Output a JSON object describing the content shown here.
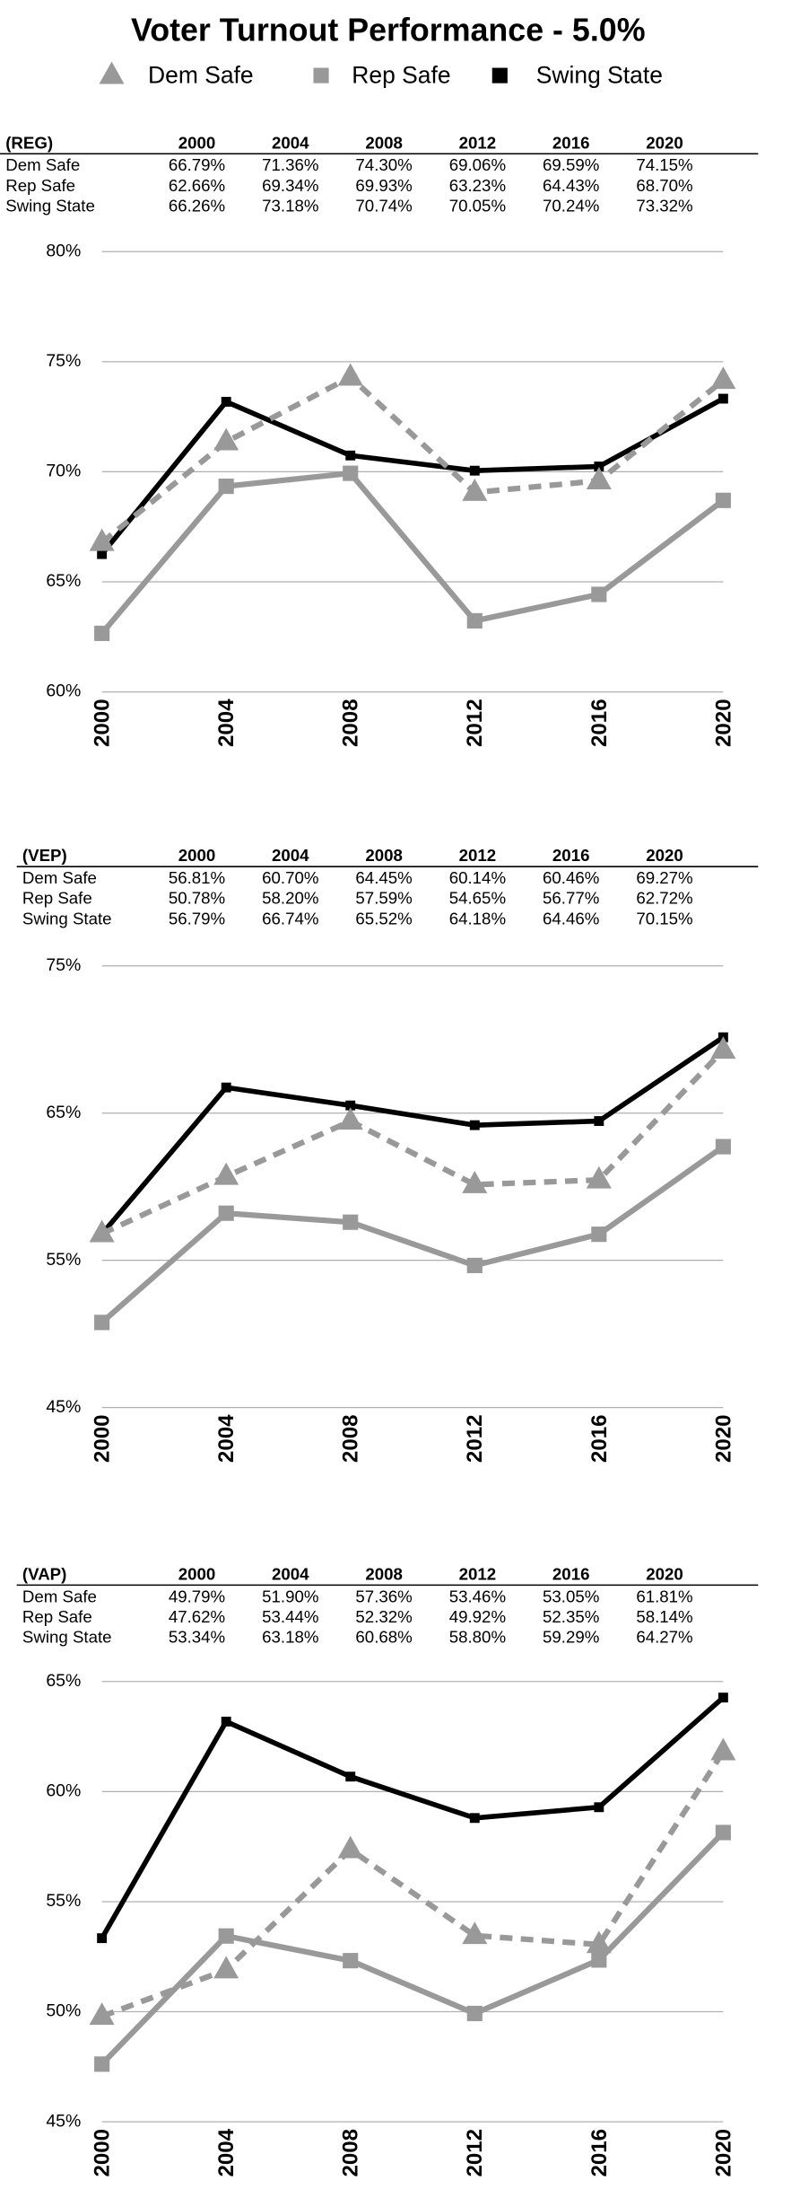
{
  "title": "Voter Turnout Performance - 5.0%",
  "chart_data": [
    {
      "type": "line",
      "table_label": "(REG)",
      "categories": [
        "2000",
        "2004",
        "2008",
        "2012",
        "2016",
        "2020"
      ],
      "ylim": [
        60,
        80
      ],
      "yticks": [
        {
          "value": 60,
          "label": "60%"
        },
        {
          "value": 65,
          "label": "65%"
        },
        {
          "value": 70,
          "label": "70%"
        },
        {
          "value": 75,
          "label": "75%"
        },
        {
          "value": 80,
          "label": "80%"
        }
      ],
      "grid": true,
      "series": [
        {
          "name": "Dem Safe",
          "color": "#999999",
          "dashed": true,
          "marker": "triangle",
          "values": [
            66.79,
            71.36,
            74.3,
            69.06,
            69.59,
            74.15
          ],
          "value_labels": [
            "66.79%",
            "71.36%",
            "74.30%",
            "69.06%",
            "69.59%",
            "74.15%"
          ]
        },
        {
          "name": "Rep Safe",
          "color": "#999999",
          "dashed": false,
          "marker": "square",
          "values": [
            62.66,
            69.34,
            69.93,
            63.23,
            64.43,
            68.7
          ],
          "value_labels": [
            "62.66%",
            "69.34%",
            "69.93%",
            "63.23%",
            "64.43%",
            "68.70%"
          ]
        },
        {
          "name": "Swing State",
          "color": "#000000",
          "dashed": false,
          "marker": "small-square",
          "values": [
            66.26,
            73.18,
            70.74,
            70.05,
            70.24,
            73.32
          ],
          "value_labels": [
            "66.26%",
            "73.18%",
            "70.74%",
            "70.05%",
            "70.24%",
            "73.32%"
          ]
        }
      ]
    },
    {
      "type": "line",
      "table_label": "(VEP)",
      "categories": [
        "2000",
        "2004",
        "2008",
        "2012",
        "2016",
        "2020"
      ],
      "ylim": [
        45,
        75
      ],
      "yticks": [
        {
          "value": 45,
          "label": "45%"
        },
        {
          "value": 55,
          "label": "55%"
        },
        {
          "value": 65,
          "label": "65%"
        },
        {
          "value": 75,
          "label": "75%"
        }
      ],
      "grid": true,
      "series": [
        {
          "name": "Dem Safe",
          "color": "#999999",
          "dashed": true,
          "marker": "triangle",
          "values": [
            56.81,
            60.7,
            64.45,
            60.14,
            60.46,
            69.27
          ],
          "value_labels": [
            "56.81%",
            "60.70%",
            "64.45%",
            "60.14%",
            "60.46%",
            "69.27%"
          ]
        },
        {
          "name": "Rep Safe",
          "color": "#999999",
          "dashed": false,
          "marker": "square",
          "values": [
            50.78,
            58.2,
            57.59,
            54.65,
            56.77,
            62.72
          ],
          "value_labels": [
            "50.78%",
            "58.20%",
            "57.59%",
            "54.65%",
            "56.77%",
            "62.72%"
          ]
        },
        {
          "name": "Swing State",
          "color": "#000000",
          "dashed": false,
          "marker": "small-square",
          "values": [
            56.79,
            66.74,
            65.52,
            64.18,
            64.46,
            70.15
          ],
          "value_labels": [
            "56.79%",
            "66.74%",
            "65.52%",
            "64.18%",
            "64.46%",
            "70.15%"
          ]
        }
      ]
    },
    {
      "type": "line",
      "table_label": "(VAP)",
      "categories": [
        "2000",
        "2004",
        "2008",
        "2012",
        "2016",
        "2020"
      ],
      "ylim": [
        45,
        65
      ],
      "yticks": [
        {
          "value": 45,
          "label": "45%"
        },
        {
          "value": 50,
          "label": "50%"
        },
        {
          "value": 55,
          "label": "55%"
        },
        {
          "value": 60,
          "label": "60%"
        },
        {
          "value": 65,
          "label": "65%"
        }
      ],
      "grid": true,
      "series": [
        {
          "name": "Dem Safe",
          "color": "#999999",
          "dashed": true,
          "marker": "triangle",
          "values": [
            49.79,
            51.9,
            57.36,
            53.46,
            53.05,
            61.81
          ],
          "value_labels": [
            "49.79%",
            "51.90%",
            "57.36%",
            "53.46%",
            "53.05%",
            "61.81%"
          ]
        },
        {
          "name": "Rep Safe",
          "color": "#999999",
          "dashed": false,
          "marker": "square",
          "values": [
            47.62,
            53.44,
            52.32,
            49.92,
            52.35,
            58.14
          ],
          "value_labels": [
            "47.62%",
            "53.44%",
            "52.32%",
            "49.92%",
            "52.35%",
            "58.14%"
          ]
        },
        {
          "name": "Swing State",
          "color": "#000000",
          "dashed": false,
          "marker": "small-square",
          "values": [
            53.34,
            63.18,
            60.68,
            58.8,
            59.29,
            64.27
          ],
          "value_labels": [
            "53.34%",
            "63.18%",
            "60.68%",
            "58.80%",
            "59.29%",
            "64.27%"
          ]
        }
      ]
    }
  ]
}
